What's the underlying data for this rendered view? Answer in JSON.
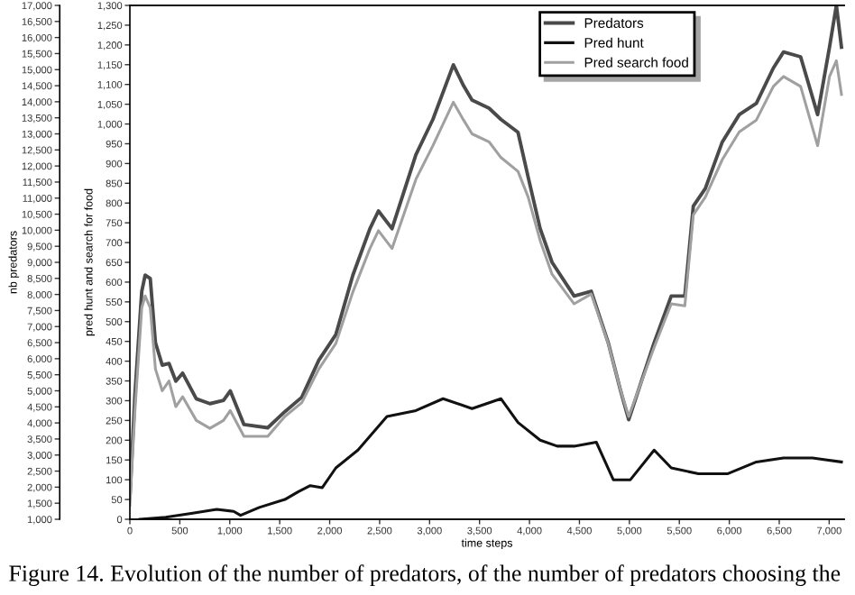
{
  "chart_data": {
    "type": "line",
    "xlabel": "time steps",
    "ylabel": "nb predators",
    "y2label": "pred hunt and search for food",
    "annotations": [
      "Figure 14. Evolution of the number of predators, of the number of predators choosing the"
    ],
    "xlim": [
      0,
      7150
    ],
    "xticks": [
      0,
      500,
      {
        "value": 1000,
        "label": "1,000"
      },
      {
        "value": 1500,
        "label": "1,500"
      },
      {
        "value": 2000,
        "label": "2,000"
      },
      {
        "value": 2500,
        "label": "2,500"
      },
      {
        "value": 3000,
        "label": "3,000"
      },
      {
        "value": 3500,
        "label": "3,500"
      },
      {
        "value": 4000,
        "label": "4,000"
      },
      {
        "value": 4500,
        "label": "4,500"
      },
      {
        "value": 5000,
        "label": "5,000"
      },
      {
        "value": 5500,
        "label": "5,500"
      },
      {
        "value": 6000,
        "label": "6,000"
      },
      {
        "value": 6500,
        "label": "6,500"
      },
      {
        "value": 7000,
        "label": "7,000"
      }
    ],
    "ylim": [
      1000,
      17000
    ],
    "yticks": [
      {
        "value": 1000,
        "label": "1,000"
      },
      {
        "value": 1500,
        "label": "1,500"
      },
      {
        "value": 2000,
        "label": "2,000"
      },
      {
        "value": 2500,
        "label": "2,500"
      },
      {
        "value": 3000,
        "label": "3,000"
      },
      {
        "value": 3500,
        "label": "3,500"
      },
      {
        "value": 4000,
        "label": "4,000"
      },
      {
        "value": 4500,
        "label": "4,500"
      },
      {
        "value": 5000,
        "label": "5,000"
      },
      {
        "value": 5500,
        "label": "5,500"
      },
      {
        "value": 6000,
        "label": "6,000"
      },
      {
        "value": 6500,
        "label": "6,500"
      },
      {
        "value": 7000,
        "label": "7,000"
      },
      {
        "value": 7500,
        "label": "7,500"
      },
      {
        "value": 8000,
        "label": "8,000"
      },
      {
        "value": 8500,
        "label": "8,500"
      },
      {
        "value": 9000,
        "label": "9,000"
      },
      {
        "value": 9500,
        "label": "9,500"
      },
      {
        "value": 10000,
        "label": "10,000"
      },
      {
        "value": 10500,
        "label": "10,500"
      },
      {
        "value": 11000,
        "label": "11,000"
      },
      {
        "value": 11500,
        "label": "11,500"
      },
      {
        "value": 12000,
        "label": "12,000"
      },
      {
        "value": 12500,
        "label": "12,500"
      },
      {
        "value": 13000,
        "label": "13,000"
      },
      {
        "value": 13500,
        "label": "13,500"
      },
      {
        "value": 14000,
        "label": "14,000"
      },
      {
        "value": 14500,
        "label": "14,500"
      },
      {
        "value": 15000,
        "label": "15,000"
      },
      {
        "value": 15500,
        "label": "15,500"
      },
      {
        "value": 16000,
        "label": "16,000"
      },
      {
        "value": 16500,
        "label": "16,500"
      },
      {
        "value": 17000,
        "label": "17,000"
      }
    ],
    "y2lim": [
      0,
      1300
    ],
    "y2ticks": [
      0,
      50,
      100,
      150,
      200,
      250,
      300,
      350,
      400,
      450,
      500,
      550,
      600,
      650,
      700,
      750,
      800,
      850,
      900,
      950,
      {
        "value": 1000,
        "label": "1,000"
      },
      {
        "value": 1050,
        "label": "1,050"
      },
      {
        "value": 1100,
        "label": "1,100"
      },
      {
        "value": 1150,
        "label": "1,150"
      },
      {
        "value": 1200,
        "label": "1,200"
      },
      {
        "value": 1250,
        "label": "1,250"
      },
      {
        "value": 1300,
        "label": "1,300"
      }
    ],
    "legend": "top right",
    "grid": false,
    "marker": "none",
    "line_style": "solid",
    "series": [
      {
        "name": "Predators",
        "color": "#4a4a4a",
        "x": [
          0,
          51,
          119,
          153,
          204,
          256,
          324,
          392,
          460,
          528,
          665,
          801,
          937,
          1005,
          1142,
          1380,
          1551,
          1721,
          1891,
          2062,
          2232,
          2403,
          2488,
          2624,
          2863,
          3033,
          3238,
          3340,
          3425,
          3595,
          3715,
          3885,
          3987,
          4107,
          4226,
          4447,
          4618,
          4788,
          4908,
          4993,
          5248,
          5419,
          5555,
          5640,
          5760,
          5930,
          6100,
          6271,
          6441,
          6543,
          6714,
          6884,
          7003,
          7072,
          7123
        ],
        "values": [
          1700,
          4900,
          8100,
          8600,
          8500,
          6500,
          5800,
          5850,
          5300,
          5550,
          4750,
          4600,
          4700,
          5000,
          3950,
          3850,
          4350,
          4800,
          5950,
          6750,
          8600,
          10050,
          10600,
          10050,
          12350,
          13450,
          15150,
          14500,
          14050,
          13800,
          13450,
          13050,
          11650,
          10050,
          9000,
          7950,
          8100,
          6500,
          5050,
          4100,
          6500,
          7950,
          7950,
          10750,
          11300,
          12750,
          13600,
          13950,
          15050,
          15550,
          15400,
          13600,
          15700,
          17000,
          15700
        ]
      },
      {
        "name": "Pred hunt",
        "color": "#111111",
        "axis": "y2",
        "x": [
          102,
          358,
          614,
          869,
          1039,
          1108,
          1295,
          1551,
          1687,
          1806,
          1926,
          2062,
          2283,
          2573,
          2863,
          3135,
          3425,
          3715,
          3885,
          4107,
          4277,
          4447,
          4669,
          4839,
          5010,
          5248,
          5419,
          5692,
          5981,
          6271,
          6543,
          6833,
          7123
        ],
        "values": [
          0,
          5,
          15,
          25,
          20,
          10,
          30,
          50,
          70,
          85,
          80,
          130,
          175,
          260,
          275,
          305,
          280,
          305,
          245,
          200,
          185,
          185,
          195,
          100,
          100,
          175,
          130,
          115,
          115,
          145,
          155,
          155,
          145
        ]
      },
      {
        "name": "Pred search food",
        "color": "#a0a0a0",
        "axis": "y2",
        "x": [
          0,
          51,
          119,
          153,
          204,
          256,
          324,
          392,
          460,
          528,
          665,
          801,
          937,
          1005,
          1142,
          1380,
          1551,
          1721,
          1891,
          2062,
          2232,
          2403,
          2488,
          2624,
          2863,
          3033,
          3238,
          3340,
          3425,
          3595,
          3715,
          3885,
          3987,
          4107,
          4226,
          4447,
          4618,
          4788,
          4908,
          4993,
          5248,
          5419,
          5555,
          5640,
          5760,
          5930,
          6100,
          6271,
          6441,
          6543,
          6714,
          6884,
          7003,
          7072,
          7123
        ],
        "values": [
          35,
          275,
          535,
          565,
          535,
          380,
          325,
          350,
          285,
          310,
          250,
          230,
          250,
          275,
          210,
          210,
          260,
          295,
          380,
          445,
          575,
          685,
          730,
          685,
          860,
          945,
          1055,
          1010,
          975,
          955,
          915,
          880,
          815,
          705,
          620,
          545,
          570,
          445,
          330,
          260,
          435,
          545,
          540,
          770,
          815,
          910,
          980,
          1010,
          1095,
          1120,
          1095,
          945,
          1120,
          1160,
          1075
        ]
      }
    ]
  }
}
